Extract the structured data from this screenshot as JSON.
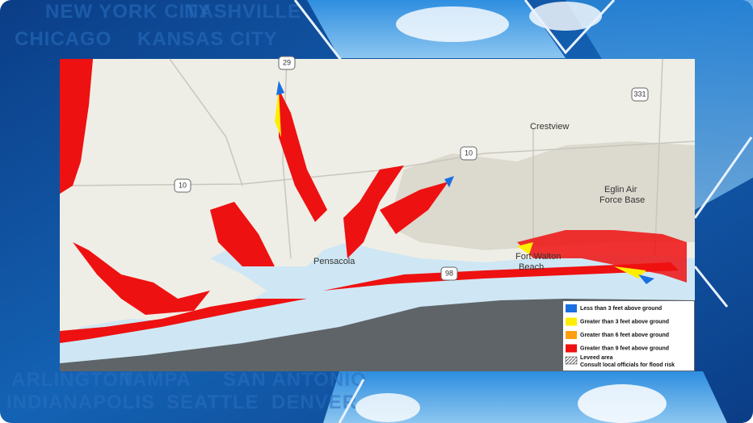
{
  "background_words": [
    "NEW YORK CITY",
    "NASHVILLE",
    "CHICAGO",
    "KANSAS CITY",
    "ARLINGTON",
    "TAMPA",
    "SAN ANTONIO",
    "INDIANAPOLIS",
    "SEATTLE",
    "DENVER"
  ],
  "map": {
    "road_shields": [
      "29",
      "10",
      "10",
      "331",
      "98"
    ],
    "places": [
      "Crestview",
      "Eglin Air",
      "Force Base",
      "Pensacola",
      "Fort Walton",
      "Beach"
    ],
    "legend": [
      {
        "label": "Less than 3 feet above ground",
        "color": "#1a6fe0"
      },
      {
        "label": "Greater than 3 feet above ground",
        "color": "#ffee00"
      },
      {
        "label": "Greater than 6 feet above ground",
        "color": "#ff9f10"
      },
      {
        "label": "Greater than 9 feet above ground",
        "color": "#ee1111"
      }
    ],
    "leveed": {
      "label": "Leveed area",
      "note": "Consult local officials for flood risk"
    }
  }
}
